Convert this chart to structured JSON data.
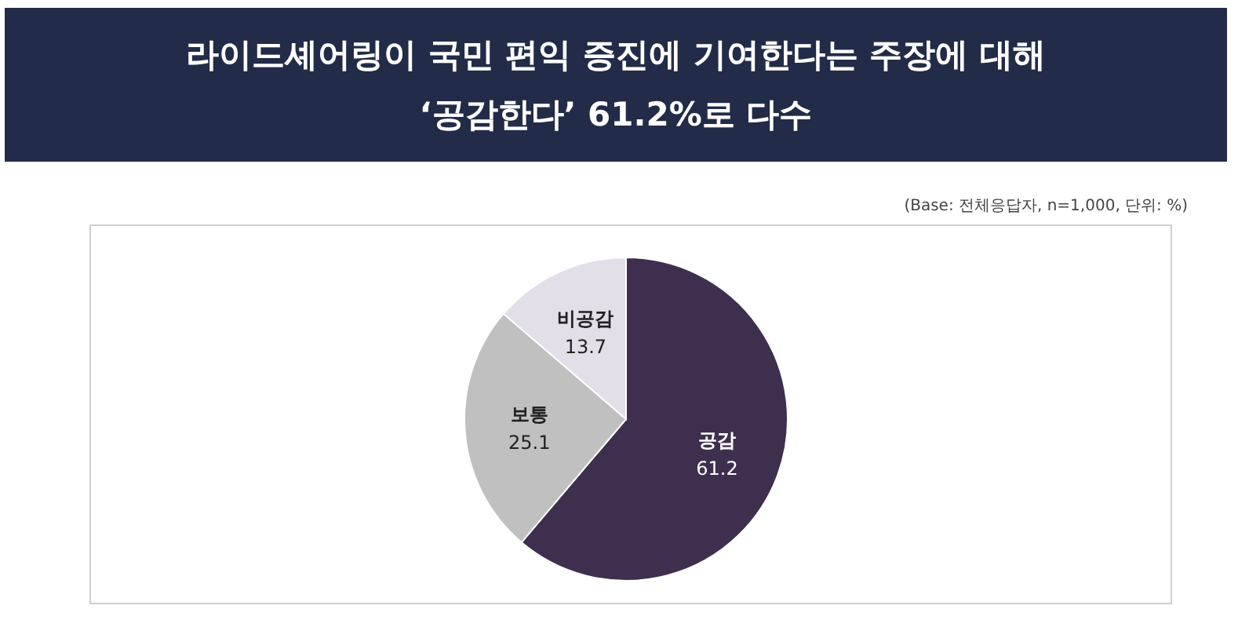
{
  "chart_data": {
    "type": "pie",
    "title": "라이드셰어링이 국민 편익 증진에 기여한다는 주장에 대해\n‘공감한다’ 61.2%로 다수",
    "annotations": [
      "(Base: 전체응답자, n=1,000, 단위: %)"
    ],
    "categories": [
      "공감",
      "보통",
      "비공감"
    ],
    "values": [
      61.2,
      25.1,
      13.7
    ],
    "colors": [
      "#3f2f4f",
      "#c0c0c0",
      "#e3dfe9"
    ],
    "data_labels": true
  }
}
